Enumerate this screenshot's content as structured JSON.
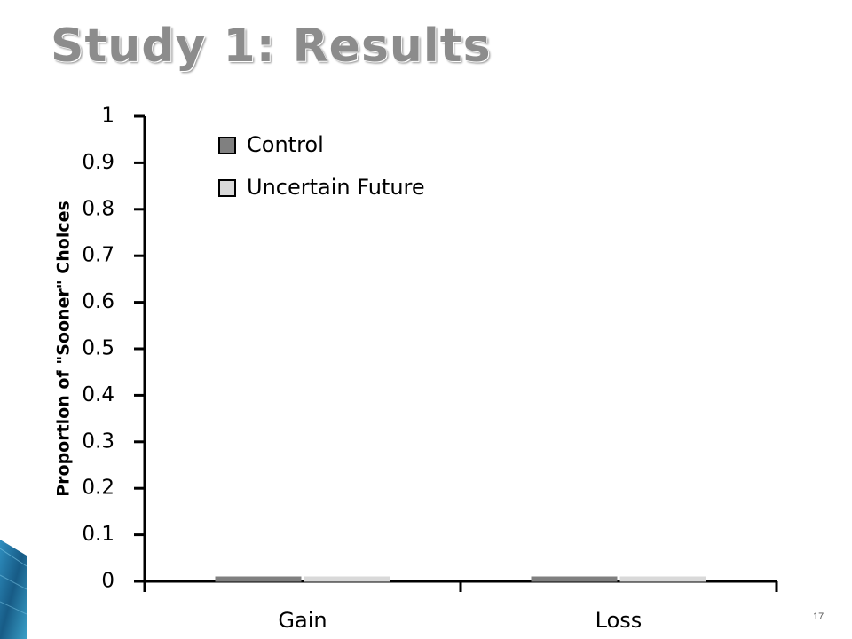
{
  "slide": {
    "title": "Study 1: Results",
    "page_number": "17"
  },
  "colors": {
    "control": "#808080",
    "uncertain_future": "#d9d9d9",
    "axis": "#000000",
    "title": "#8c8c8c",
    "decor": "#1a5e8a"
  },
  "chart_data": {
    "type": "bar",
    "ylabel": "Proportion of \"Sooner\" Choices",
    "xlabel": "",
    "categories": [
      "Gain",
      "Loss"
    ],
    "ylim": [
      0,
      1
    ],
    "yticks": [
      "0",
      "0.1",
      "0.2",
      "0.3",
      "0.4",
      "0.5",
      "0.6",
      "0.7",
      "0.8",
      "0.9",
      "1"
    ],
    "series": [
      {
        "name": "Control",
        "values": [
          0,
          0
        ]
      },
      {
        "name": "Uncertain Future",
        "values": [
          0,
          0
        ]
      }
    ],
    "legend_position": "top-left",
    "grid": false
  }
}
